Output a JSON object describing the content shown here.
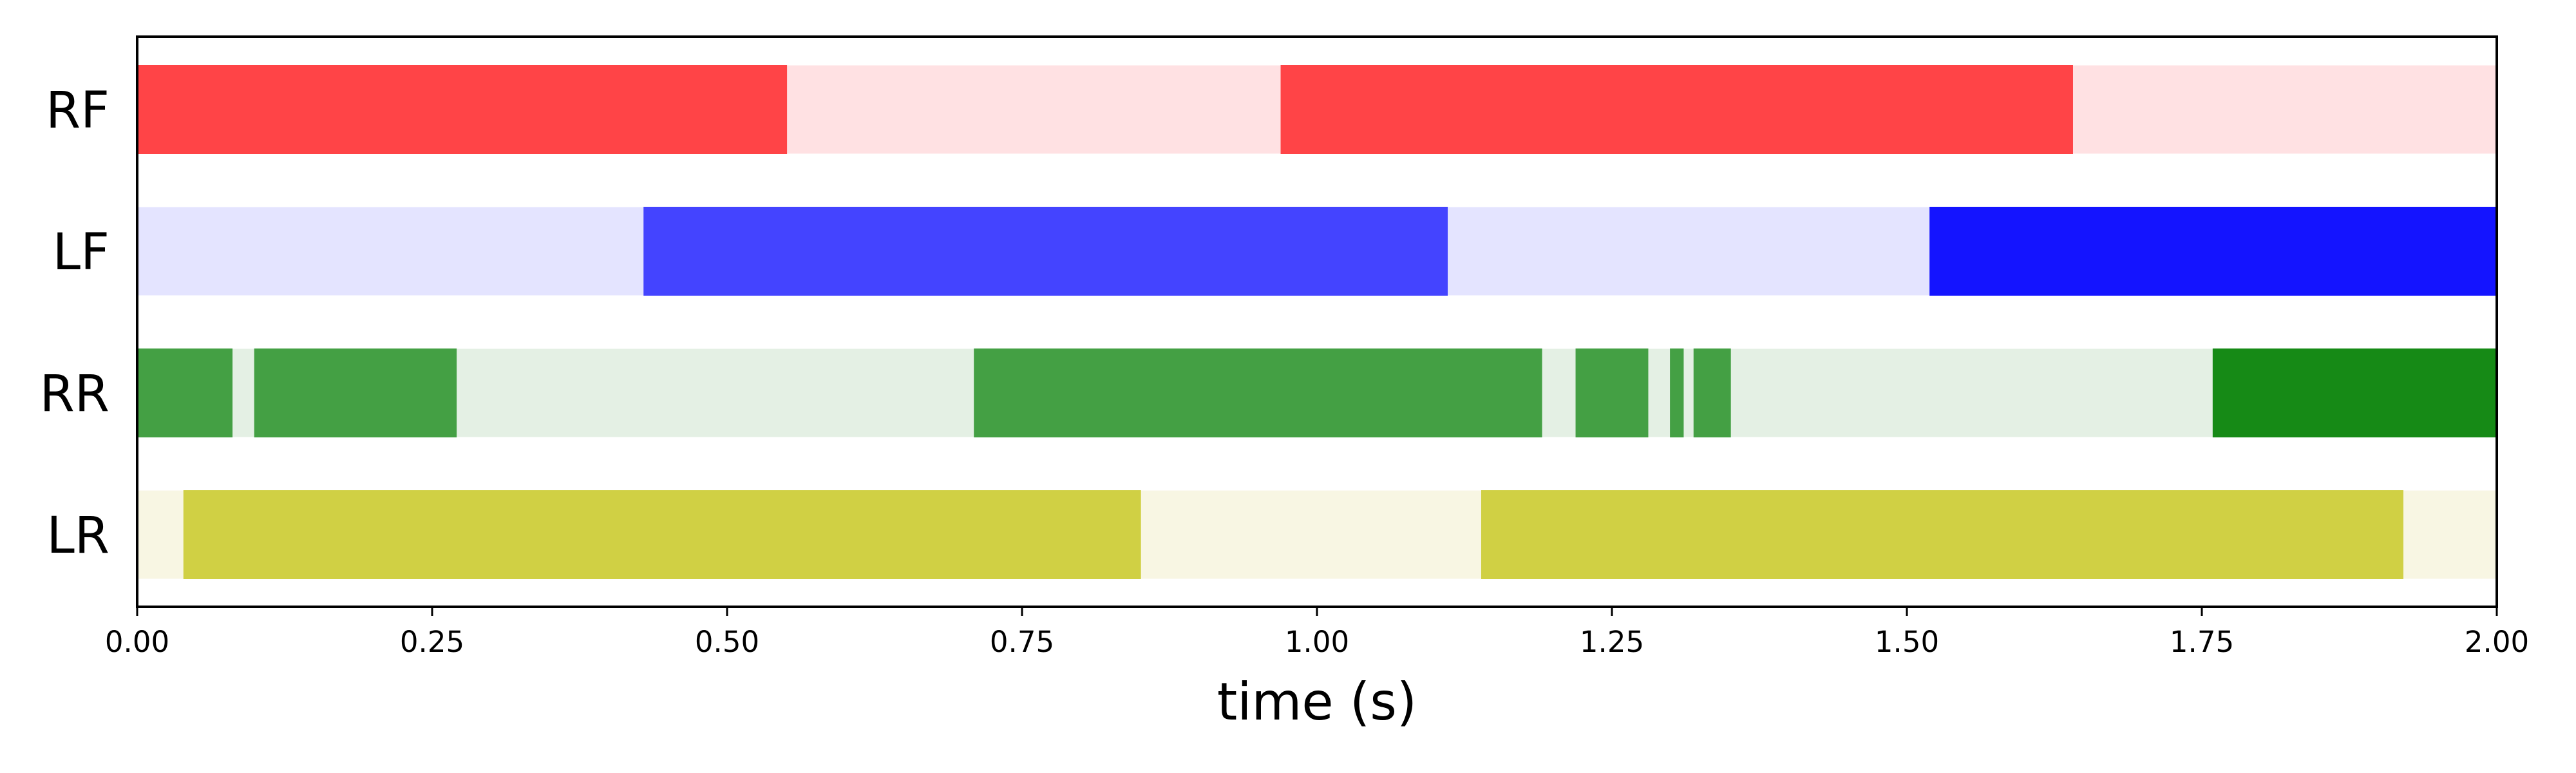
{
  "chart_data": {
    "type": "bar",
    "subtype": "gait-phase-timeline",
    "title": "",
    "xlabel": "time (s)",
    "ylabel": "",
    "xlim": [
      0,
      2
    ],
    "x_ticks": [
      "0.00",
      "0.25",
      "0.50",
      "0.75",
      "1.00",
      "1.25",
      "1.50",
      "1.75",
      "2.00"
    ],
    "grid": false,
    "legend": "none",
    "series": [
      {
        "label": "RF",
        "background_color": "#ffe1e3",
        "segments": [
          {
            "start": 0.0,
            "end": 0.55,
            "color": "#ff4447"
          },
          {
            "start": 0.97,
            "end": 1.64,
            "color": "#ff4447"
          }
        ]
      },
      {
        "label": "LF",
        "background_color": "#e4e4ff",
        "segments": [
          {
            "start": 0.43,
            "end": 1.11,
            "color": "#4444ff"
          },
          {
            "start": 1.52,
            "end": 2.0,
            "color": "#1414ff"
          }
        ]
      },
      {
        "label": "RR",
        "background_color": "#e4f0e4",
        "segments": [
          {
            "start": 0.0,
            "end": 0.08,
            "color": "#44a044"
          },
          {
            "start": 0.1,
            "end": 0.27,
            "color": "#44a044"
          },
          {
            "start": 0.71,
            "end": 1.19,
            "color": "#44a044"
          },
          {
            "start": 1.22,
            "end": 1.28,
            "color": "#44a044"
          },
          {
            "start": 1.3,
            "end": 1.31,
            "color": "#44a044"
          },
          {
            "start": 1.32,
            "end": 1.35,
            "color": "#44a044"
          },
          {
            "start": 1.76,
            "end": 2.0,
            "color": "#168a16"
          }
        ]
      },
      {
        "label": "LR",
        "background_color": "#f8f6e3",
        "segments": [
          {
            "start": 0.04,
            "end": 0.85,
            "color": "#d0d044"
          },
          {
            "start": 1.14,
            "end": 1.92,
            "color": "#d0d044"
          }
        ]
      }
    ]
  }
}
